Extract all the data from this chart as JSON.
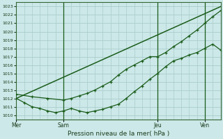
{
  "title": "Pression niveau de la mer( hPa )",
  "ylim": [
    1009.5,
    1023.5
  ],
  "yticks": [
    1010,
    1011,
    1012,
    1013,
    1014,
    1015,
    1016,
    1017,
    1018,
    1019,
    1020,
    1021,
    1022,
    1023
  ],
  "bg_color": "#cce8e8",
  "grid_color": "#aacccc",
  "line_color": "#1a5c1a",
  "xtick_positions": [
    0,
    3,
    9,
    12
  ],
  "xtick_labels": [
    "Mer",
    "Sam",
    "Jeu",
    "Ven"
  ],
  "vline_positions": [
    3,
    9,
    12
  ],
  "xlim": [
    0,
    13
  ],
  "straight_line_x": [
    0,
    13
  ],
  "straight_line_y": [
    1012.0,
    1023.0
  ],
  "line1_x": [
    0,
    0.5,
    1,
    1.5,
    2,
    2.5,
    3,
    3.5,
    4,
    4.5,
    5,
    5.5,
    6,
    6.5,
    7,
    7.5,
    8,
    8.5,
    9,
    9.5,
    10,
    10.5,
    11,
    11.5,
    12,
    12.5,
    13
  ],
  "line1_y": [
    1012.0,
    1011.5,
    1011.0,
    1010.8,
    1010.5,
    1010.3,
    1010.5,
    1010.8,
    1010.5,
    1010.3,
    1010.5,
    1010.7,
    1011.0,
    1011.3,
    1012.0,
    1012.8,
    1013.5,
    1014.3,
    1015.0,
    1015.8,
    1016.5,
    1016.8,
    1017.2,
    1017.5,
    1018.0,
    1018.5,
    1017.8
  ],
  "line2_x": [
    0,
    1,
    2,
    3,
    3.5,
    4,
    4.5,
    5,
    5.5,
    6,
    6.5,
    7,
    7.5,
    8,
    8.5,
    9,
    9.5,
    10,
    10.5,
    11,
    11.5,
    12,
    12.5,
    13
  ],
  "line2_y": [
    1012.5,
    1012.2,
    1012.0,
    1011.8,
    1012.0,
    1012.3,
    1012.6,
    1013.0,
    1013.5,
    1014.0,
    1014.8,
    1015.5,
    1016.0,
    1016.5,
    1017.0,
    1017.0,
    1017.5,
    1018.2,
    1018.8,
    1019.5,
    1020.2,
    1021.0,
    1021.8,
    1022.5
  ]
}
